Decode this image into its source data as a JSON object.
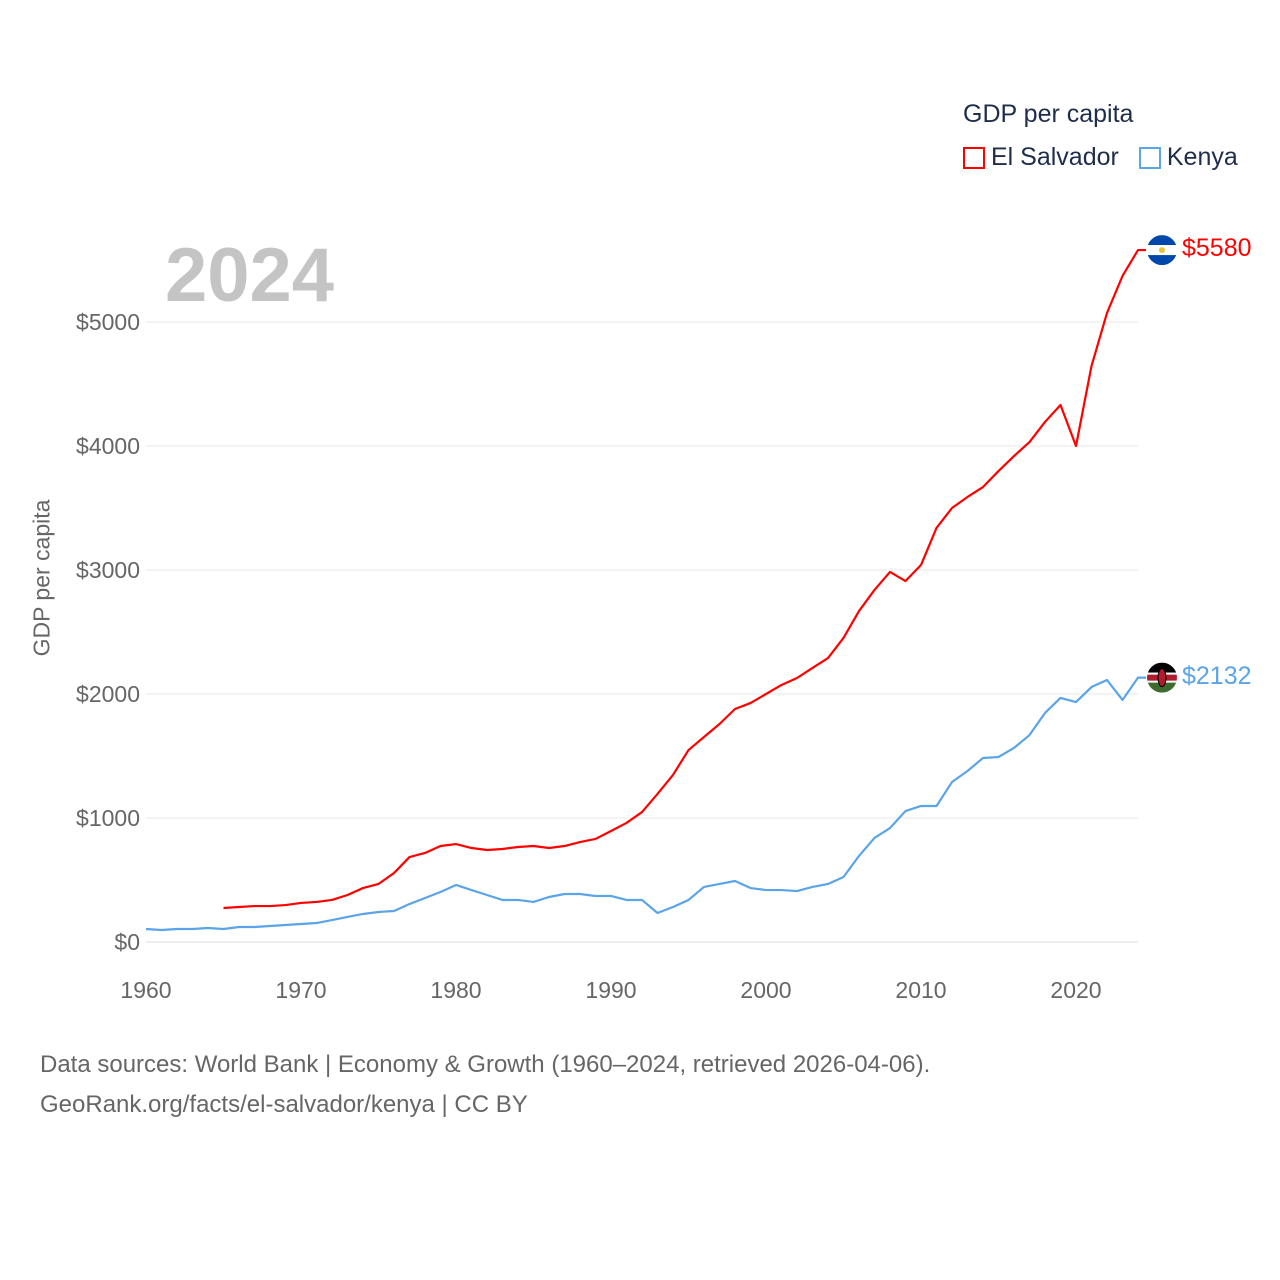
{
  "chart_data": {
    "type": "line",
    "title": "GDP per capita",
    "ylabel": "GDP per capita",
    "xlabel": "",
    "year_label": "2024",
    "xlim": [
      1960,
      2024
    ],
    "ylim": [
      0,
      5800
    ],
    "x_ticks": [
      "1960",
      "1970",
      "1980",
      "1990",
      "2000",
      "2010",
      "2020"
    ],
    "y_ticks": [
      {
        "v": 0,
        "label": "$0"
      },
      {
        "v": 1000,
        "label": "$1000"
      },
      {
        "v": 2000,
        "label": "$2000"
      },
      {
        "v": 3000,
        "label": "$3000"
      },
      {
        "v": 4000,
        "label": "$4000"
      },
      {
        "v": 5000,
        "label": "$5000"
      }
    ],
    "grid": true,
    "legend_position": "top-right",
    "series": [
      {
        "name": "El Salvador",
        "color": "#ff0000",
        "end_label": "$5580",
        "start_year": 1965,
        "values": [
          274,
          282,
          290,
          290,
          298,
          315,
          323,
          339,
          379,
          435,
          468,
          556,
          685,
          718,
          774,
          790,
          758,
          742,
          750,
          766,
          774,
          758,
          774,
          806,
          831,
          895,
          960,
          1048,
          1194,
          1347,
          1548,
          1653,
          1758,
          1879,
          1927,
          2000,
          2073,
          2129,
          2210,
          2290,
          2452,
          2669,
          2839,
          2984,
          2911,
          3040,
          3339,
          3500,
          3589,
          3669,
          3798,
          3919,
          4032,
          4194,
          4331,
          4000,
          4645,
          5073,
          5371,
          5580
        ]
      },
      {
        "name": "Kenya",
        "color": "#5ba4e8",
        "end_label": "$2132",
        "start_year": 1960,
        "values": [
          105,
          97,
          105,
          105,
          113,
          105,
          121,
          121,
          129,
          137,
          145,
          153,
          177,
          202,
          226,
          242,
          250,
          306,
          355,
          403,
          460,
          419,
          379,
          339,
          339,
          323,
          363,
          387,
          387,
          371,
          371,
          339,
          339,
          234,
          282,
          339,
          444,
          468,
          492,
          435,
          419,
          419,
          411,
          444,
          468,
          524,
          694,
          839,
          919,
          1056,
          1097,
          1097,
          1290,
          1379,
          1484,
          1492,
          1565,
          1669,
          1847,
          1968,
          1935,
          2056,
          2113,
          1952,
          2132
        ]
      }
    ]
  },
  "footer": {
    "line1": "Data sources: World Bank | Economy & Growth (1960–2024, retrieved 2026-04-06).",
    "line2": "GeoRank.org/facts/el-salvador/kenya | CC BY"
  }
}
